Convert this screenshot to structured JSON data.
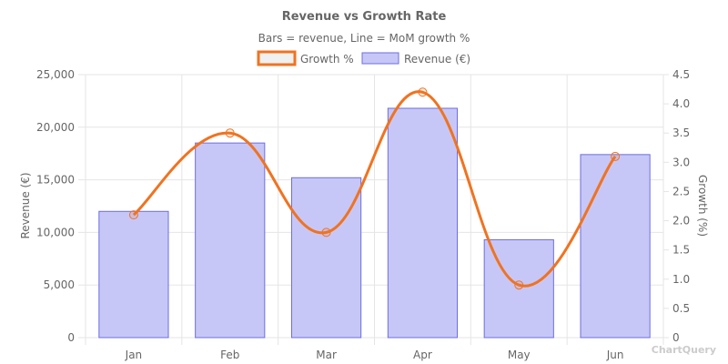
{
  "chart_data": {
    "type": "bar",
    "title": "Revenue vs Growth Rate",
    "subtitle": "Bars = revenue, Line = MoM growth %",
    "categories": [
      "Jan",
      "Feb",
      "Mar",
      "Apr",
      "May",
      "Jun"
    ],
    "series": [
      {
        "name": "Growth %",
        "type": "line",
        "axis": "right",
        "values": [
          2.1,
          3.5,
          1.8,
          4.2,
          0.9,
          3.1
        ],
        "color": "#f07320"
      },
      {
        "name": "Revenue (€)",
        "type": "bar",
        "axis": "left",
        "values": [
          12000,
          18500,
          15200,
          21800,
          9300,
          17400
        ],
        "color": "#c7c7f7",
        "border_color": "#6d6de0"
      }
    ],
    "ylabel": "Revenue (€)",
    "y2label": "Growth (%)",
    "ylim": [
      0,
      25000
    ],
    "y2lim": [
      0,
      4.5
    ],
    "yticks": [
      "0",
      "5,000",
      "10,000",
      "15,000",
      "20,000",
      "25,000"
    ],
    "y2ticks": [
      "0",
      "0.5",
      "1.0",
      "1.5",
      "2.0",
      "2.5",
      "3.0",
      "3.5",
      "4.0",
      "4.5"
    ],
    "grid": true,
    "legend_position": "top-center"
  },
  "watermark": "ChartQuery"
}
